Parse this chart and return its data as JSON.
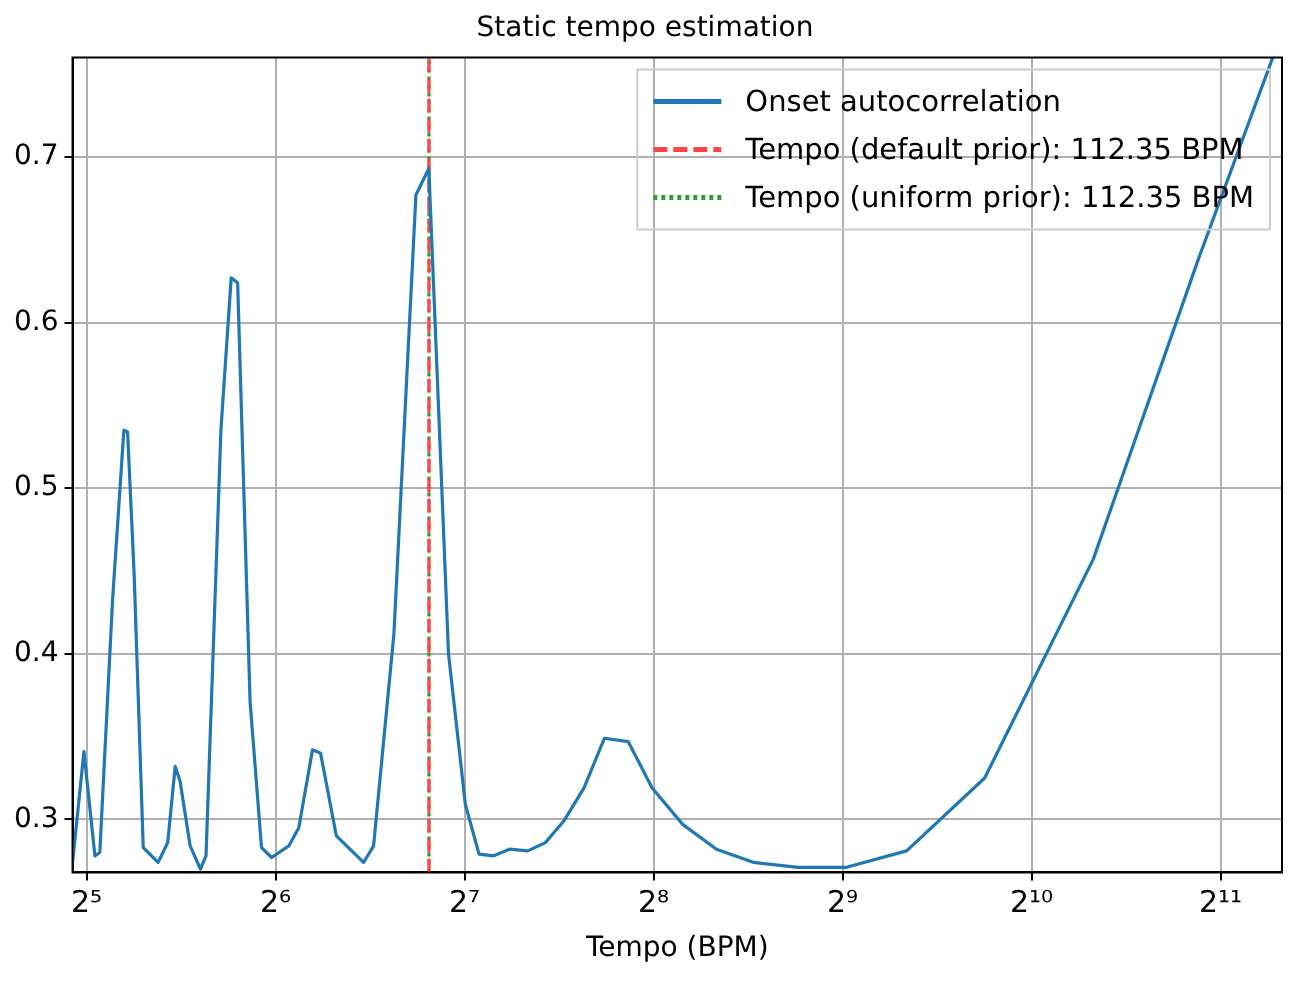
{
  "chart_data": {
    "type": "line",
    "title": "Static tempo estimation",
    "xlabel": "Tempo (BPM)",
    "log": "x",
    "grid": true,
    "legend": "top right",
    "xlim": [
      30.4,
      2566
    ],
    "ylim": [
      0.268,
      0.76
    ],
    "xticks": [
      {
        "value": 32,
        "label": "2⁵"
      },
      {
        "value": 64,
        "label": "2⁶"
      },
      {
        "value": 128,
        "label": "2⁷"
      },
      {
        "value": 256,
        "label": "2⁸"
      },
      {
        "value": 512,
        "label": "2⁹"
      },
      {
        "value": 1024,
        "label": "2¹⁰"
      },
      {
        "value": 2048,
        "label": "2¹¹"
      }
    ],
    "yticks": [
      0.3,
      0.4,
      0.5,
      0.6,
      0.7
    ],
    "series": [
      {
        "name": "Onset autocorrelation",
        "color": "#1f77b4",
        "type": "line",
        "line_style": "solid",
        "x": [
          30.4,
          31.7,
          33.0,
          33.6,
          35.2,
          36.7,
          37.2,
          38.1,
          39.4,
          41.6,
          43.1,
          44.3,
          45.1,
          46.8,
          48.6,
          49.6,
          52.4,
          54.4,
          55.7,
          58.3,
          60.8,
          63.1,
          67.2,
          69.7,
          73.3,
          75.5,
          80.0,
          88.4,
          91.7,
          98.8,
          107.1,
          112.3,
          120.7,
          128.4,
          135.0,
          142.5,
          151.0,
          161.4,
          172.2,
          184.2,
          198.4,
          213.8,
          233.3,
          254.7,
          284.9,
          322.5,
          369.9,
          434.8,
          517.8,
          647.7,
          862.4,
          1284,
          1887,
          2480
        ],
        "values": [
          0.274,
          0.341,
          0.278,
          0.28,
          0.432,
          0.535,
          0.534,
          0.449,
          0.283,
          0.274,
          0.286,
          0.332,
          0.323,
          0.284,
          0.27,
          0.278,
          0.536,
          0.627,
          0.624,
          0.371,
          0.283,
          0.277,
          0.284,
          0.295,
          0.342,
          0.34,
          0.29,
          0.274,
          0.284,
          0.412,
          0.677,
          0.693,
          0.4,
          0.309,
          0.279,
          0.278,
          0.282,
          0.281,
          0.286,
          0.299,
          0.319,
          0.349,
          0.347,
          0.319,
          0.297,
          0.282,
          0.274,
          0.271,
          0.271,
          0.281,
          0.325,
          0.457,
          0.638,
          0.76
        ]
      },
      {
        "name": "Tempo (default prior): 112.35 BPM",
        "color": "#ff4444",
        "type": "line",
        "line_style": "dashed",
        "x": [
          112.35,
          112.35
        ],
        "values": [
          0.268,
          0.76
        ]
      },
      {
        "name": "Tempo (uniform prior): 112.35 BPM",
        "color": "#2ca02c",
        "type": "line",
        "line_style": "dotted",
        "x": [
          112.35,
          112.35
        ],
        "values": [
          0.268,
          0.76
        ]
      }
    ]
  }
}
